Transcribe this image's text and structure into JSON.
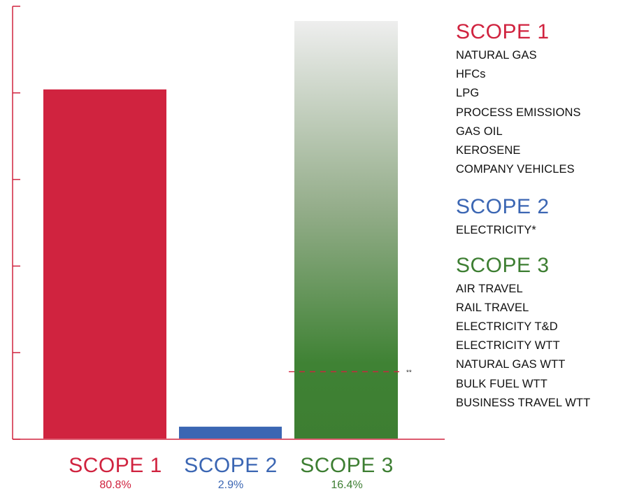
{
  "colors": {
    "scope1": "#d0233f",
    "scope2": "#3b66b3",
    "scope3": "#3d7e32",
    "axis": "#d0233f",
    "marker": "#d0233f"
  },
  "chart_data": {
    "type": "bar",
    "categories": [
      "SCOPE 1",
      "SCOPE 2",
      "SCOPE 3"
    ],
    "values": [
      80.8,
      2.9,
      16.4
    ],
    "percent_labels": [
      "80.8%",
      "2.9%",
      "16.4%"
    ],
    "value_unit": "%",
    "ylim": [
      0,
      100
    ],
    "y_ticks": [
      0,
      20,
      40,
      60,
      80,
      100
    ],
    "y_tick_labels": [],
    "grid": false,
    "legend_position": "right",
    "scope3_gradient_fades_to": "light grey at top",
    "scope3_marker": {
      "value": 15.6,
      "label": "**",
      "style": "dashed"
    }
  },
  "legend": {
    "scope1": {
      "heading": "SCOPE 1",
      "items": [
        "NATURAL GAS",
        "HFCs",
        "LPG",
        "PROCESS EMISSIONS",
        "GAS OIL",
        "KEROSENE",
        "COMPANY VEHICLES"
      ]
    },
    "scope2": {
      "heading": "SCOPE 2",
      "items": [
        "ELECTRICITY*"
      ]
    },
    "scope3": {
      "heading": "SCOPE 3",
      "items": [
        "AIR TRAVEL",
        "RAIL TRAVEL",
        "ELECTRICITY T&D",
        "ELECTRICITY WTT",
        "NATURAL GAS WTT",
        "BULK FUEL WTT",
        "BUSINESS TRAVEL WTT"
      ]
    }
  }
}
